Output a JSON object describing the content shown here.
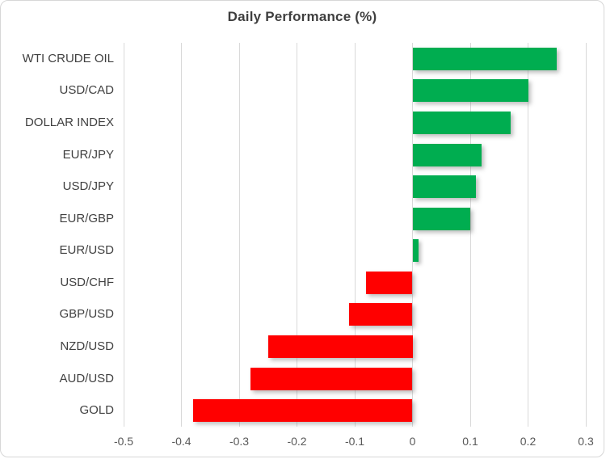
{
  "chart_data": {
    "type": "bar",
    "orientation": "horizontal",
    "title": "Daily Performance (%)",
    "categories": [
      "WTI CRUDE OIL",
      "USD/CAD",
      "DOLLAR INDEX",
      "EUR/JPY",
      "USD/JPY",
      "EUR/GBP",
      "EUR/USD",
      "USD/CHF",
      "GBP/USD",
      "NZD/USD",
      "AUD/USD",
      "GOLD"
    ],
    "values": [
      0.25,
      0.2,
      0.17,
      0.12,
      0.11,
      0.1,
      0.01,
      -0.08,
      -0.11,
      -0.25,
      -0.28,
      -0.38
    ],
    "xlabel": "",
    "ylabel": "",
    "xlim": [
      -0.5,
      0.3
    ],
    "x_ticks": [
      -0.5,
      -0.4,
      -0.3,
      -0.2,
      -0.1,
      0,
      0.1,
      0.2,
      0.3
    ],
    "x_tick_labels": [
      "-0.5",
      "-0.4",
      "-0.3",
      "-0.2",
      "-0.1",
      "0",
      "0.1",
      "0.2",
      "0.3"
    ],
    "grid": "vertical-on",
    "legend": "none",
    "colors": {
      "positive_bar": "#00AD50",
      "negative_bar": "#FF0000",
      "gridline": "#D9D9D9",
      "title_text": "#3F3F3F",
      "category_text": "#404040",
      "tick_text": "#595959",
      "frame_border": "#D7D7D7",
      "background": "#FFFFFF"
    }
  }
}
